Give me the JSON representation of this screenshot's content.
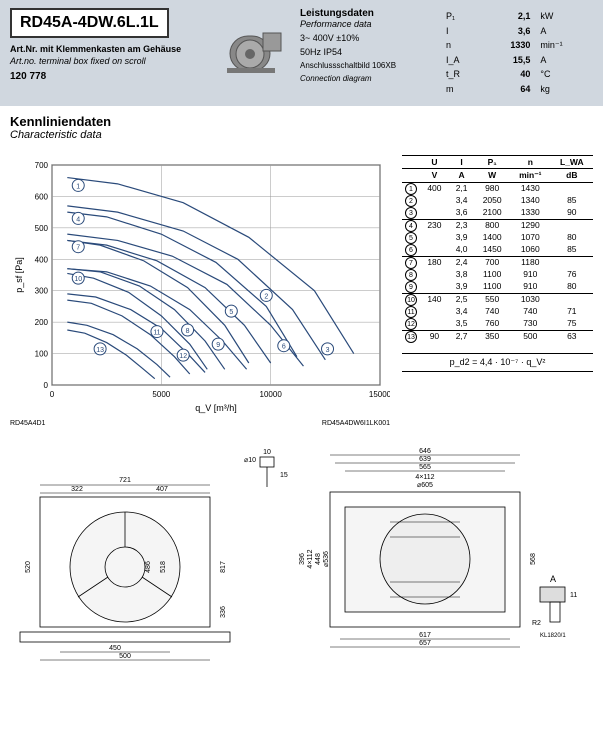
{
  "header": {
    "model": "RD45A-4DW.6L.1L",
    "artno_label_de": "Art.Nr.",
    "artno_label_en": "Art.no.",
    "artno_desc_de": "mit Klemmenkasten am Gehäuse",
    "artno_desc_en": "terminal box fixed on scroll",
    "artcode": "120 778",
    "perf_title_de": "Leistungsdaten",
    "perf_title_en": "Performance data",
    "voltage": "3~ 400V ±10%",
    "freq_ip": "50Hz  IP54",
    "conn_de": "Anschlussschaltbild 106XB",
    "conn_en": "Connection diagram",
    "specs": [
      {
        "sym": "P₁",
        "val": "2,1",
        "unit": "kW"
      },
      {
        "sym": "I",
        "val": "3,6",
        "unit": "A"
      },
      {
        "sym": "n",
        "val": "1330",
        "unit": "min⁻¹"
      },
      {
        "sym": "I_A",
        "val": "15,5",
        "unit": "A"
      },
      {
        "sym": "t_R",
        "val": "40",
        "unit": "°C"
      },
      {
        "sym": "m",
        "val": "64",
        "unit": "kg"
      }
    ]
  },
  "section": {
    "title_de": "Kennliniendaten",
    "title_en": "Characteristic data"
  },
  "chart": {
    "ylabel": "p_sf [Pa]",
    "xlabel": "q_V [m³/h]",
    "xlim": [
      0,
      15000
    ],
    "ylim": [
      0,
      700
    ],
    "xticks": [
      0,
      5000,
      10000,
      15000
    ],
    "yticks": [
      0,
      100,
      200,
      300,
      400,
      500,
      600,
      700
    ],
    "bg": "#ffffff",
    "grid": "#999999",
    "line": "#2a4a7a",
    "footer_left": "RD45A4D1",
    "footer_right": "RD45A4DW6I1LK001",
    "curves": [
      {
        "n": 1,
        "pts": [
          [
            700,
            660
          ],
          [
            3000,
            640
          ],
          [
            6000,
            580
          ],
          [
            9000,
            470
          ],
          [
            12000,
            300
          ],
          [
            13800,
            100
          ]
        ],
        "lx": 1200,
        "ly": 635
      },
      {
        "n": 2,
        "pts": [
          [
            700,
            570
          ],
          [
            3000,
            550
          ],
          [
            6000,
            490
          ],
          [
            8500,
            400
          ],
          [
            11000,
            240
          ],
          [
            12500,
            80
          ]
        ],
        "lx": 9800,
        "ly": 285
      },
      {
        "n": 3,
        "pts": [
          [
            700,
            480
          ],
          [
            3000,
            460
          ],
          [
            5500,
            410
          ],
          [
            8000,
            320
          ],
          [
            10000,
            190
          ],
          [
            11500,
            60
          ]
        ],
        "lx": 12600,
        "ly": 115
      },
      {
        "n": 4,
        "pts": [
          [
            700,
            550
          ],
          [
            2500,
            535
          ],
          [
            5000,
            480
          ],
          [
            7500,
            390
          ],
          [
            9800,
            250
          ],
          [
            11200,
            90
          ]
        ],
        "lx": 1200,
        "ly": 530
      },
      {
        "n": 5,
        "pts": [
          [
            700,
            460
          ],
          [
            2500,
            445
          ],
          [
            4800,
            395
          ],
          [
            7000,
            310
          ],
          [
            8800,
            190
          ],
          [
            10000,
            70
          ]
        ],
        "lx": 8200,
        "ly": 235
      },
      {
        "n": 6,
        "pts": [
          [
            700,
            370
          ],
          [
            2500,
            360
          ],
          [
            4500,
            315
          ],
          [
            6300,
            240
          ],
          [
            7800,
            140
          ],
          [
            8900,
            50
          ]
        ],
        "lx": 10600,
        "ly": 125
      },
      {
        "n": 7,
        "pts": [
          [
            700,
            460
          ],
          [
            2200,
            445
          ],
          [
            4200,
            395
          ],
          [
            6200,
            310
          ],
          [
            7900,
            190
          ],
          [
            9000,
            70
          ]
        ],
        "lx": 1200,
        "ly": 440
      },
      {
        "n": 8,
        "pts": [
          [
            700,
            370
          ],
          [
            2200,
            360
          ],
          [
            4000,
            315
          ],
          [
            5600,
            240
          ],
          [
            7000,
            140
          ],
          [
            7900,
            50
          ]
        ],
        "lx": 6200,
        "ly": 175
      },
      {
        "n": 9,
        "pts": [
          [
            700,
            290
          ],
          [
            2000,
            280
          ],
          [
            3600,
            240
          ],
          [
            5000,
            180
          ],
          [
            6200,
            100
          ],
          [
            7000,
            40
          ]
        ],
        "lx": 7600,
        "ly": 130
      },
      {
        "n": 10,
        "pts": [
          [
            700,
            355
          ],
          [
            1900,
            340
          ],
          [
            3500,
            295
          ],
          [
            5000,
            220
          ],
          [
            6300,
            130
          ],
          [
            7100,
            50
          ]
        ],
        "lx": 1200,
        "ly": 340
      },
      {
        "n": 11,
        "pts": [
          [
            700,
            270
          ],
          [
            1800,
            260
          ],
          [
            3200,
            220
          ],
          [
            4500,
            160
          ],
          [
            5600,
            90
          ],
          [
            6300,
            35
          ]
        ],
        "lx": 4800,
        "ly": 170
      },
      {
        "n": 12,
        "pts": [
          [
            700,
            200
          ],
          [
            1600,
            190
          ],
          [
            2800,
            160
          ],
          [
            3900,
            115
          ],
          [
            4800,
            65
          ],
          [
            5400,
            25
          ]
        ],
        "lx": 6000,
        "ly": 95
      },
      {
        "n": 13,
        "pts": [
          [
            700,
            175
          ],
          [
            1500,
            165
          ],
          [
            2500,
            135
          ],
          [
            3400,
            95
          ],
          [
            4100,
            55
          ],
          [
            4700,
            20
          ]
        ],
        "lx": 2200,
        "ly": 115
      }
    ]
  },
  "dtable": {
    "headers": [
      "",
      "U",
      "I",
      "P₁",
      "n",
      "L_WA"
    ],
    "units": [
      "",
      "V",
      "A",
      "W",
      "min⁻¹",
      "dB"
    ],
    "groups": [
      {
        "u": "400",
        "rows": [
          {
            "n": 1,
            "i": "2,1",
            "p": "980",
            "rpm": "1430",
            "db": ""
          },
          {
            "n": 2,
            "i": "3,4",
            "p": "2050",
            "rpm": "1340",
            "db": "85"
          },
          {
            "n": 3,
            "i": "3,6",
            "p": "2100",
            "rpm": "1330",
            "db": "90"
          }
        ]
      },
      {
        "u": "230",
        "rows": [
          {
            "n": 4,
            "i": "2,3",
            "p": "800",
            "rpm": "1290",
            "db": ""
          },
          {
            "n": 5,
            "i": "3,9",
            "p": "1400",
            "rpm": "1070",
            "db": "80"
          },
          {
            "n": 6,
            "i": "4,0",
            "p": "1450",
            "rpm": "1060",
            "db": "85"
          }
        ]
      },
      {
        "u": "180",
        "rows": [
          {
            "n": 7,
            "i": "2,4",
            "p": "700",
            "rpm": "1180",
            "db": ""
          },
          {
            "n": 8,
            "i": "3,8",
            "p": "1100",
            "rpm": "910",
            "db": "76"
          },
          {
            "n": 9,
            "i": "3,9",
            "p": "1100",
            "rpm": "910",
            "db": "80"
          }
        ]
      },
      {
        "u": "140",
        "rows": [
          {
            "n": 10,
            "i": "2,5",
            "p": "550",
            "rpm": "1030",
            "db": ""
          },
          {
            "n": 11,
            "i": "3,4",
            "p": "740",
            "rpm": "740",
            "db": "71"
          },
          {
            "n": 12,
            "i": "3,5",
            "p": "760",
            "rpm": "730",
            "db": "75"
          }
        ]
      },
      {
        "u": "90",
        "rows": [
          {
            "n": 13,
            "i": "2,7",
            "p": "350",
            "rpm": "500",
            "db": "63"
          }
        ]
      }
    ],
    "formula": "p_d2 = 4,4 · 10⁻⁷ · q_V²"
  },
  "drawings": {
    "dims_front": [
      "721",
      "322",
      "407",
      "520",
      "450",
      "500",
      "486",
      "518",
      "817",
      "336"
    ],
    "dims_top": [
      "646",
      "639",
      "565",
      "4×112",
      "605",
      "448",
      "4×112",
      "568",
      "617",
      "657",
      "396",
      "536",
      "⌀10",
      "10",
      "15"
    ],
    "detail": [
      "A",
      "R2",
      "11",
      "KL1820/1"
    ]
  }
}
